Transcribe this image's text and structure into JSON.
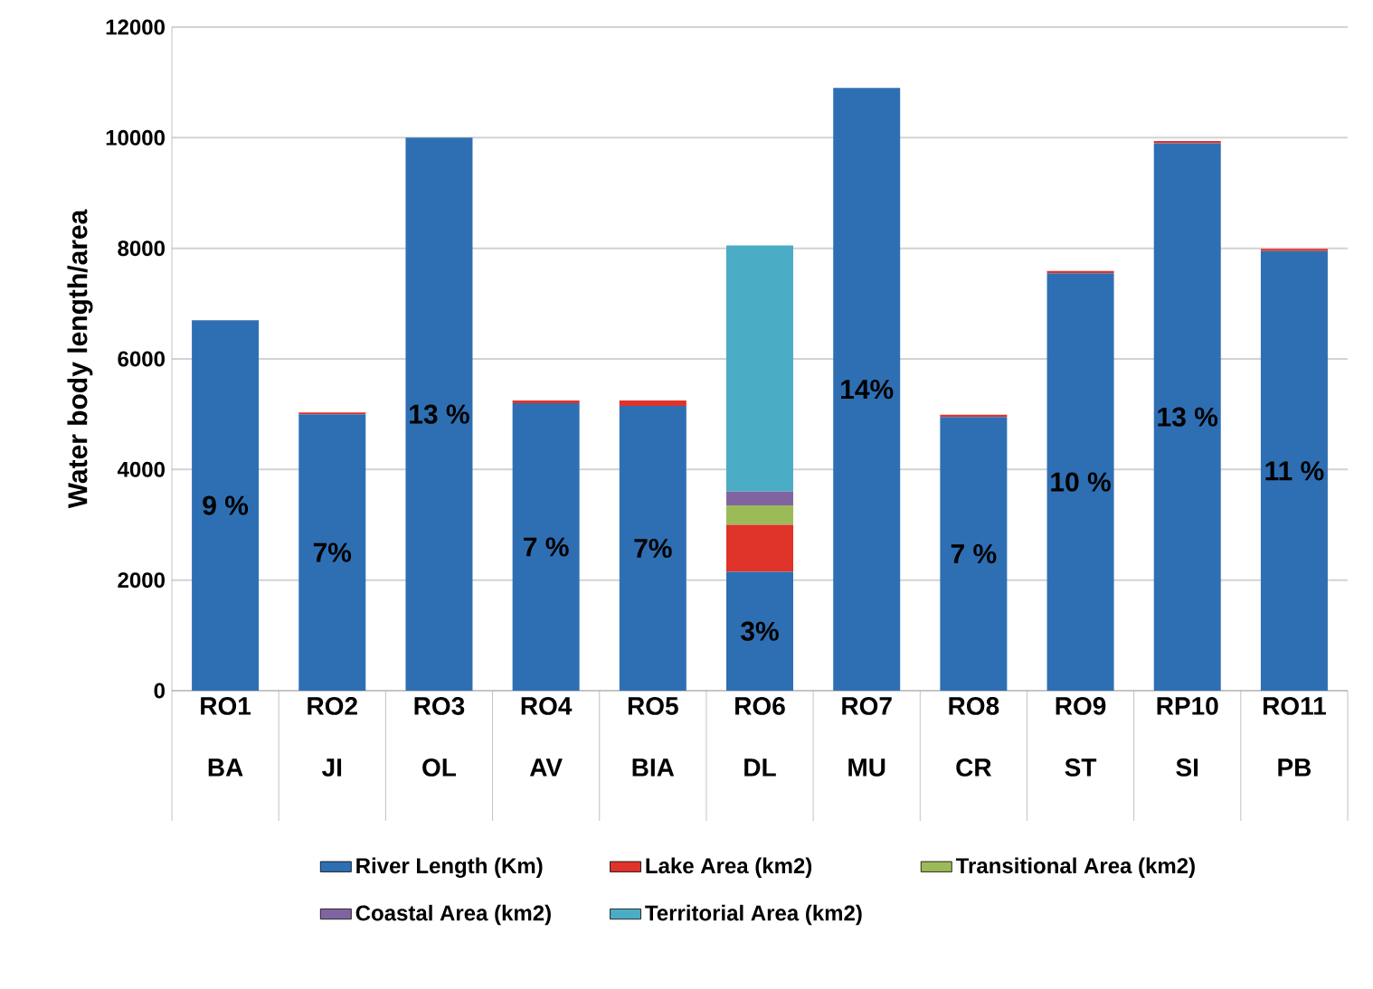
{
  "chart_data": {
    "type": "bar",
    "stacked": true,
    "ylabel": "Water body length/area",
    "categories": [
      "RO1 BA",
      "RO2 JI",
      "RO3 OL",
      "RO4 AV",
      "RO5 BIA",
      "RO6 DL",
      "RO7 MU",
      "RO8 CR",
      "RO9 ST",
      "RP10 SI",
      "RO11 PB"
    ],
    "series": [
      {
        "name": "River Length (Km)",
        "color": "#2e6fb4",
        "values": [
          6700,
          5000,
          10000,
          5200,
          5150,
          2150,
          10900,
          4950,
          7550,
          9900,
          7950
        ]
      },
      {
        "name": "Lake Area (km2)",
        "color": "#e0332a",
        "values": [
          null,
          30,
          null,
          50,
          100,
          850,
          null,
          40,
          40,
          40,
          40
        ]
      },
      {
        "name": "Transitional Area (km2)",
        "color": "#9bbb59",
        "values": [
          null,
          null,
          null,
          null,
          null,
          350,
          null,
          null,
          null,
          null,
          null
        ]
      },
      {
        "name": "Coastal Area (km2)",
        "color": "#8064a2",
        "values": [
          null,
          null,
          null,
          null,
          null,
          250,
          null,
          null,
          null,
          null,
          null
        ]
      },
      {
        "name": "Territorial Area (km2)",
        "color": "#4bacc6",
        "values": [
          null,
          null,
          null,
          null,
          null,
          4450,
          null,
          null,
          null,
          null,
          null
        ]
      }
    ],
    "annotations": [
      "9 %",
      "7%",
      "13 %",
      "7 %",
      "7%",
      "3%",
      "14%",
      "7 %",
      "10 %",
      "13 %",
      "11 %"
    ],
    "ylim": [
      0,
      12000
    ],
    "yticks": [
      0,
      2000,
      4000,
      6000,
      8000,
      10000,
      12000
    ],
    "grid": "y",
    "legend": "bottom"
  }
}
